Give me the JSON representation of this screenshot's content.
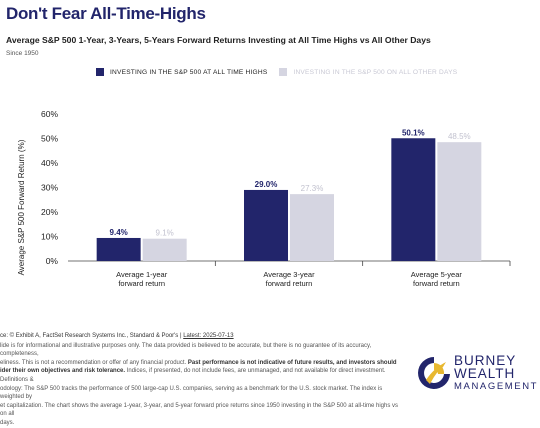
{
  "header": {
    "title": "Don't Fear All-Time-Highs",
    "subtitle": "Average S&P 500 1-Year, 3-Years, 5-Years Forward Returns Investing at All Time Highs vs All Other Days",
    "since": "Since 1950"
  },
  "legend": [
    {
      "label": "INVESTING IN THE S&P 500 AT ALL TIME HIGHS",
      "color": "#22256b"
    },
    {
      "label": "INVESTING IN THE S&P 500 ON ALL OTHER DAYS",
      "color": "#d5d5e1"
    }
  ],
  "chart_data": {
    "type": "bar",
    "categories": [
      "Average 1-year\nforward return",
      "Average 3-year\nforward return",
      "Average 5-year\nforward return"
    ],
    "series": [
      {
        "name": "INVESTING IN THE S&P 500 AT ALL TIME HIGHS",
        "values": [
          9.4,
          29.0,
          50.1
        ],
        "labels": [
          "9.4%",
          "29.0%",
          "50.1%"
        ],
        "color": "#22256b"
      },
      {
        "name": "INVESTING IN THE S&P 500 ON ALL OTHER DAYS",
        "values": [
          9.1,
          27.3,
          48.5
        ],
        "labels": [
          "9.1%",
          "27.3%",
          "48.5%"
        ],
        "color": "#d5d5e1"
      }
    ],
    "ylabel": "Average S&P 500 Forward Return (%)",
    "ylim": [
      0,
      60
    ],
    "yticks": [
      "0%",
      "10%",
      "20%",
      "30%",
      "40%",
      "50%",
      "60%"
    ],
    "grid": false,
    "legend_position": "top"
  },
  "footer": {
    "source_prefix": "ce: © Exhibit A, FactSet Research Systems Inc., Standard & Poor's |",
    "source_date": "Latest: 2025-07-13",
    "lines": [
      {
        "text": "lide is for informational and illustrative purposes only. The data provided is believed to be accurate, but there is no guarantee of its accuracy, completeness,",
        "bold": false
      },
      {
        "text": "eliness. This is not a recommendation or offer of any financial product.",
        "bold": false,
        "bold_tail": " Past performance is not indicative of future results, and investors should"
      },
      {
        "text": "ider their own objectives and risk tolerance.",
        "bold": true,
        "tail": " Indices, if presented, do not include fees, are unmanaged, and not available for direct investment. Definitions &"
      },
      {
        "text": "odology: The S&P 500 tracks the performance of 500 large-cap U.S. companies, serving as a benchmark for the U.S. stock market. The index is weighted by",
        "bold": false
      },
      {
        "text": "et capitalization. The chart shows the average 1-year, 3-year, and 5-year forward price returns since 1950 investing in the S&P 500 at all-time highs vs on all",
        "bold": false
      },
      {
        "text": "days.",
        "bold": false
      }
    ]
  },
  "logo": {
    "line1": "BURNEY",
    "line2": "WEALTH",
    "line3": "MANAGEMENT",
    "colors": {
      "navy": "#22256b",
      "gold": "#e8b830"
    }
  }
}
